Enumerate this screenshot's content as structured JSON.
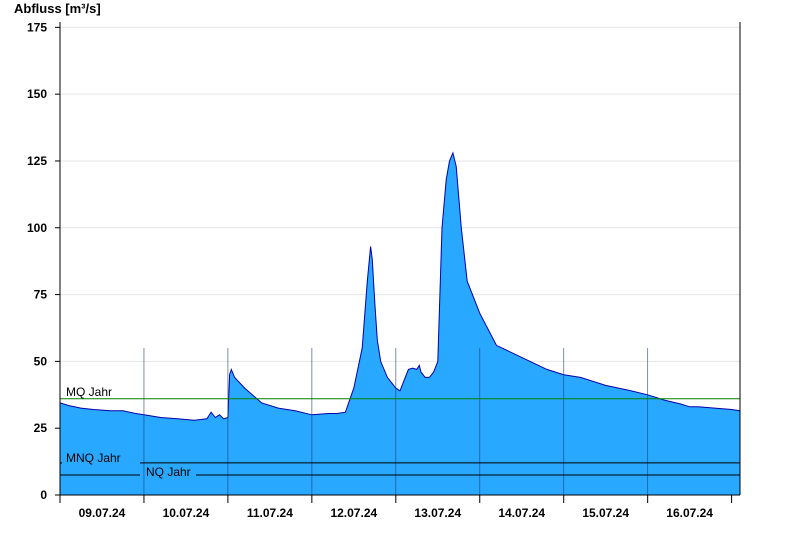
{
  "chart_data": {
    "type": "area",
    "ylabel": "Abfluss [m³/s]",
    "ylim": [
      0,
      177
    ],
    "yticks": [
      0,
      25,
      50,
      75,
      100,
      125,
      150,
      175
    ],
    "xlim": [
      0,
      8.1
    ],
    "xticks": [
      {
        "x": 0.5,
        "label": "09.07.24"
      },
      {
        "x": 1.5,
        "label": "10.07.24"
      },
      {
        "x": 2.5,
        "label": "11.07.24"
      },
      {
        "x": 3.5,
        "label": "12.07.24"
      },
      {
        "x": 4.5,
        "label": "13.07.24"
      },
      {
        "x": 5.5,
        "label": "14.07.24"
      },
      {
        "x": 6.5,
        "label": "15.07.24"
      },
      {
        "x": 7.5,
        "label": "16.07.24"
      }
    ],
    "day_boundaries": [
      1,
      2,
      3,
      4,
      5,
      6,
      7
    ],
    "grid": "horizontal",
    "reference_lines": [
      {
        "name": "MQ Jahr",
        "value": 36,
        "color": "#008000"
      },
      {
        "name": "MNQ Jahr",
        "value": 12,
        "color": "#000000"
      },
      {
        "name": "NQ Jahr",
        "value": 7.5,
        "color": "#000000"
      }
    ],
    "fill_color": "#29a8ff",
    "line_color": "#0000aa",
    "series": [
      {
        "x": [
          0,
          0.1,
          0.25,
          0.4,
          0.6,
          0.75,
          0.9,
          1.0,
          1.2,
          1.4,
          1.6,
          1.75,
          1.8,
          1.85,
          1.9,
          1.95,
          2.0,
          2.02,
          2.04,
          2.08,
          2.2,
          2.4,
          2.6,
          2.8,
          3.0,
          3.2,
          3.3,
          3.4,
          3.5,
          3.6,
          3.66,
          3.7,
          3.72,
          3.75,
          3.78,
          3.82,
          3.9,
          4.0,
          4.05,
          4.1,
          4.15,
          4.2,
          4.25,
          4.28,
          4.3,
          4.35,
          4.4,
          4.45,
          4.5,
          4.55,
          4.6,
          4.64,
          4.68,
          4.72,
          4.78,
          4.85,
          5.0,
          5.2,
          5.4,
          5.6,
          5.8,
          6.0,
          6.2,
          6.5,
          6.8,
          7.0,
          7.2,
          7.4,
          7.5,
          7.6,
          7.8,
          8.0,
          8.1
        ],
        "y": [
          34.5,
          33.5,
          32.5,
          32,
          31.5,
          31.5,
          30.5,
          30,
          29,
          28.5,
          28,
          28.5,
          31,
          29,
          30,
          28.5,
          29,
          45,
          47,
          44,
          40,
          34.5,
          32.5,
          31.5,
          30,
          30.5,
          30.5,
          31,
          40,
          55,
          80,
          93,
          88,
          72,
          58,
          50,
          44,
          40,
          39,
          43,
          47,
          47.5,
          47,
          48.5,
          46,
          44,
          44,
          46,
          50,
          100,
          118,
          125,
          128,
          123,
          100,
          80,
          68,
          56,
          53,
          50,
          47,
          45,
          44,
          41,
          39,
          37.5,
          35.5,
          34,
          33,
          33,
          32.5,
          32,
          31.5
        ]
      }
    ]
  }
}
